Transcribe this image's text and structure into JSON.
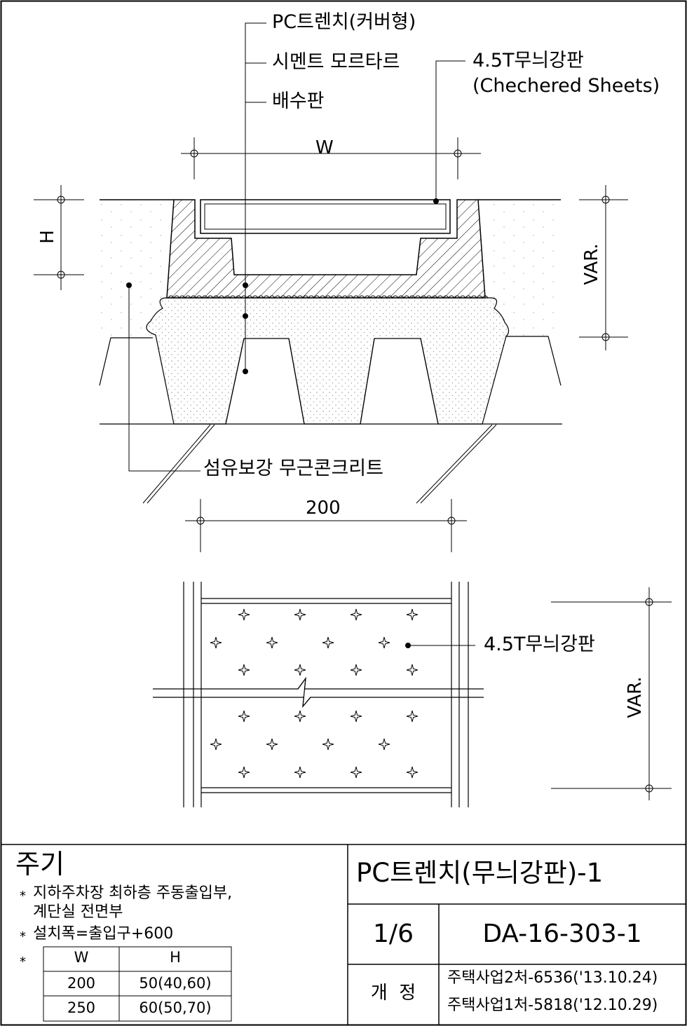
{
  "section_labels": {
    "pc_trench": "PC트렌치(커버형)",
    "cement_mortar": "시멘트 모르타르",
    "drain_board": "배수판",
    "checkered_plate": "4.5T무늬강판",
    "checkered_plate_en": "(Chechered Sheets)",
    "fiber_concrete": "섬유보강 무근콘크리트"
  },
  "dimensions": {
    "width_symbol": "W",
    "height_symbol": "H",
    "var_section": "VAR.",
    "base_width": "200",
    "var_plan": "VAR."
  },
  "plan_labels": {
    "checkered_plate": "4.5T무늬강판"
  },
  "notes": {
    "title": "주기",
    "bullet": "*",
    "line1": "지하주차장 최하층 주동출입부,",
    "line2": "계단실 전면부",
    "line3": "설치폭=출입구+600",
    "table": {
      "headers": [
        "W",
        "H"
      ],
      "rows": [
        [
          "200",
          "50(40,60)"
        ],
        [
          "250",
          "60(50,70)"
        ]
      ]
    }
  },
  "title_block": {
    "drawing_title": "PC트렌치(무늬강판)-1",
    "sheet": "1/6",
    "drawing_number": "DA-16-303-1",
    "revision_label": "개  정",
    "revisions": [
      "주택사업2처-6536('13.10.24)",
      "주택사업1처-5818('12.10.29)"
    ]
  }
}
